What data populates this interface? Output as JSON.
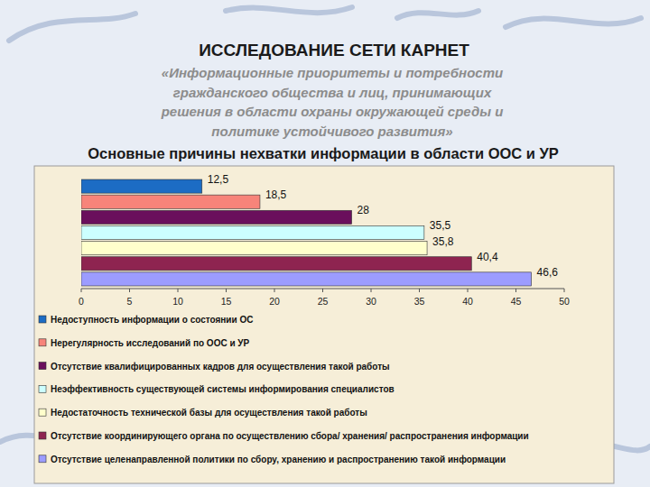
{
  "slide": {
    "heading": "ИССЛЕДОВАНИЕ СЕТИ КАРНЕТ",
    "subtitle_lines": [
      "«Информационные приоритеты и потребности",
      "гражданского общества и лиц, принимающих",
      "решения в области охраны окружающей среды и",
      "политике устойчивого развития»"
    ]
  },
  "chart_data": {
    "type": "bar",
    "orientation": "horizontal",
    "title": "Основные причины нехватки информации в области ООС и УР",
    "categories": [
      "Недоступность информации о состоянии ОС",
      "Нерегулярность исследований по ООС и УР",
      "Отсутствие квалифицированных кадров для осуществления такой работы",
      "Неэффективность существующей системы информирования специалистов",
      "Недостаточность технической базы для осуществления такой работы",
      "Отсутствие координирующего органа по осуществлению сбора/ хранения/ распространения информации",
      "Отсутствие целенаправленной политики по сбору, хранению и распространению такой информации"
    ],
    "values": [
      12.5,
      18.5,
      28,
      35.5,
      35.8,
      40.4,
      46.6
    ],
    "value_labels": [
      "12,5",
      "18,5",
      "28",
      "35,5",
      "35,8",
      "40,4",
      "46,6"
    ],
    "colors": [
      "#1c6cc4",
      "#f7847a",
      "#6a0f5c",
      "#ccffff",
      "#ffffcc",
      "#8e2450",
      "#9c9cff"
    ],
    "xlim": [
      0,
      50
    ],
    "xticks": [
      0,
      5,
      10,
      15,
      20,
      25,
      30,
      35,
      40,
      45,
      50
    ],
    "grid": false,
    "data_labels": true,
    "legend": "bottom",
    "tick_labels": "x"
  }
}
